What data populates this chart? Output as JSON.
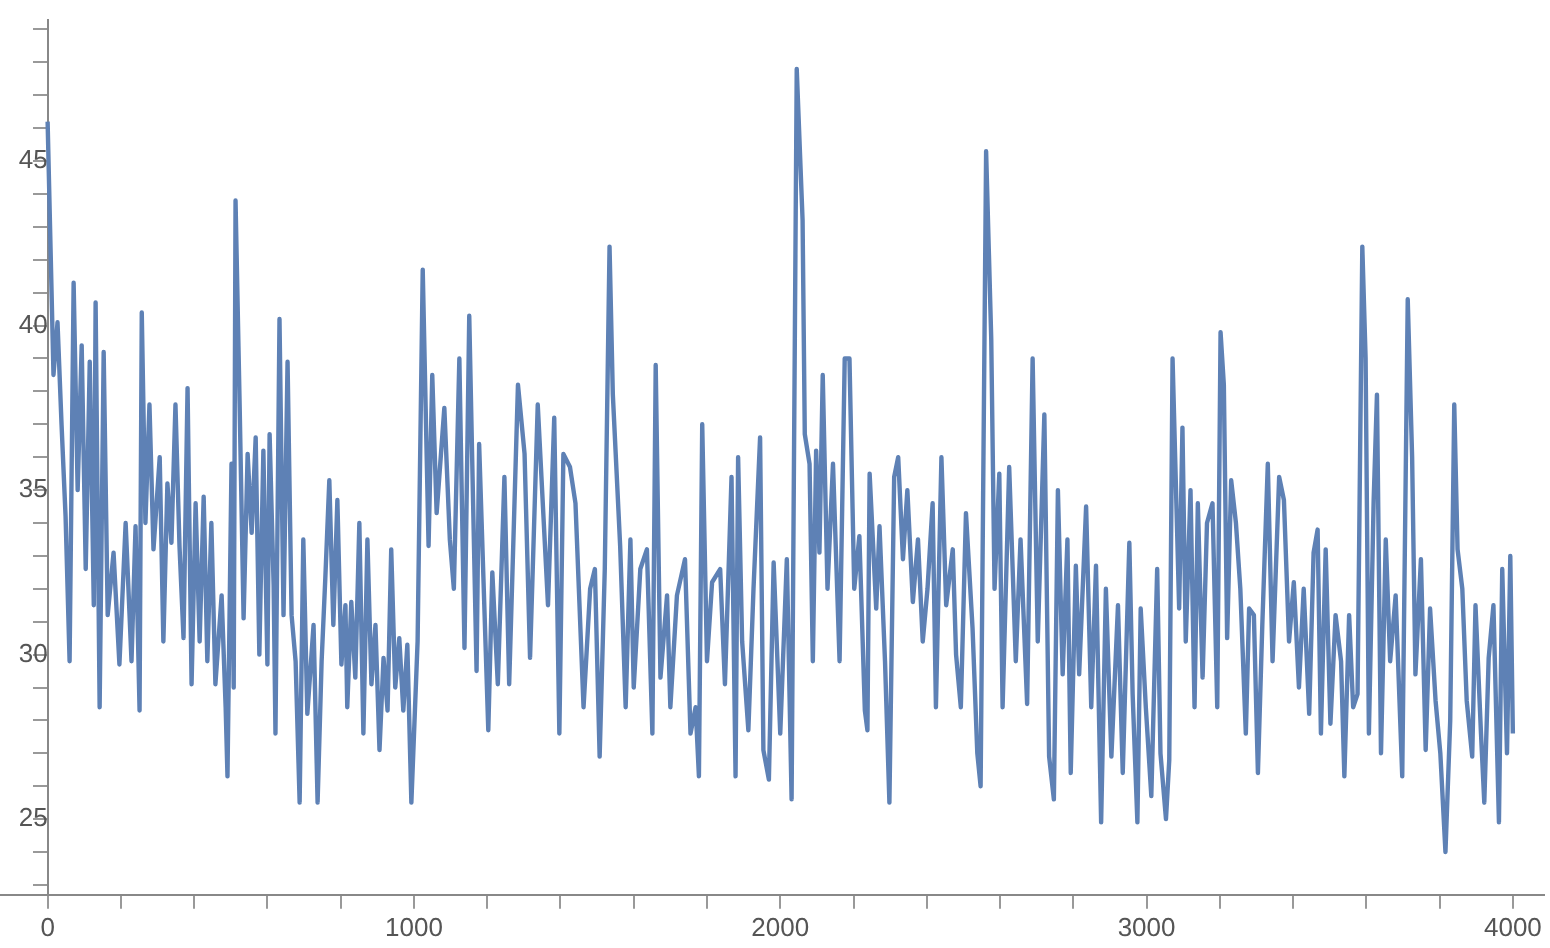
{
  "chart_data": {
    "type": "line",
    "color": "#5e81b5",
    "marker": "none",
    "grid": false,
    "legend": false,
    "xlim": [
      -130,
      4085
    ],
    "ylim": [
      22.7,
      49.3
    ],
    "xticks": [
      0,
      {
        "value": 200,
        "label": null
      },
      {
        "value": 400,
        "label": null
      },
      {
        "value": 600,
        "label": null
      },
      {
        "value": 800,
        "label": null
      },
      1000,
      {
        "value": 1200,
        "label": null
      },
      {
        "value": 1400,
        "label": null
      },
      {
        "value": 1600,
        "label": null
      },
      {
        "value": 1800,
        "label": null
      },
      2000,
      {
        "value": 2200,
        "label": null
      },
      {
        "value": 2400,
        "label": null
      },
      {
        "value": 2600,
        "label": null
      },
      {
        "value": 2800,
        "label": null
      },
      3000,
      {
        "value": 3200,
        "label": null
      },
      {
        "value": 3400,
        "label": null
      },
      {
        "value": 3600,
        "label": null
      },
      {
        "value": 3800,
        "label": null
      },
      4000
    ],
    "yticks": [
      {
        "value": 23,
        "label": null
      },
      {
        "value": 24,
        "label": null
      },
      25,
      {
        "value": 26,
        "label": null
      },
      {
        "value": 27,
        "label": null
      },
      {
        "value": 28,
        "label": null
      },
      {
        "value": 29,
        "label": null
      },
      30,
      {
        "value": 31,
        "label": null
      },
      {
        "value": 32,
        "label": null
      },
      {
        "value": 33,
        "label": null
      },
      {
        "value": 34,
        "label": null
      },
      35,
      {
        "value": 36,
        "label": null
      },
      {
        "value": 37,
        "label": null
      },
      {
        "value": 38,
        "label": null
      },
      {
        "value": 39,
        "label": null
      },
      40,
      {
        "value": 41,
        "label": null
      },
      {
        "value": 42,
        "label": null
      },
      {
        "value": 43,
        "label": null
      },
      {
        "value": 44,
        "label": null
      },
      45,
      {
        "value": 46,
        "label": null
      },
      {
        "value": 47,
        "label": null
      },
      {
        "value": 48,
        "label": null
      },
      {
        "value": 49,
        "label": null
      }
    ],
    "x": [
      0,
      16,
      27,
      38,
      49,
      60,
      71,
      82,
      93,
      104,
      115,
      126,
      131,
      142,
      153,
      164,
      180,
      196,
      213,
      229,
      240,
      251,
      257,
      267,
      278,
      289,
      306,
      316,
      327,
      338,
      349,
      360,
      371,
      382,
      393,
      404,
      415,
      426,
      436,
      447,
      458,
      475,
      486,
      491,
      502,
      508,
      513,
      524,
      535,
      546,
      557,
      568,
      578,
      589,
      600,
      606,
      617,
      622,
      633,
      644,
      655,
      666,
      677,
      688,
      698,
      709,
      726,
      737,
      748,
      758,
      769,
      780,
      791,
      802,
      813,
      818,
      829,
      840,
      851,
      862,
      873,
      884,
      895,
      906,
      917,
      928,
      938,
      949,
      960,
      971,
      982,
      993,
      1010,
      1024,
      1040,
      1050,
      1062,
      1083,
      1098,
      1109,
      1124,
      1138,
      1151,
      1171,
      1178,
      1203,
      1214,
      1229,
      1247,
      1260,
      1284,
      1302,
      1317,
      1338,
      1366,
      1383,
      1397,
      1408,
      1426,
      1441,
      1463,
      1481,
      1494,
      1507,
      1521,
      1534,
      1543,
      1563,
      1578,
      1591,
      1600,
      1618,
      1636,
      1651,
      1660,
      1673,
      1691,
      1700,
      1718,
      1740,
      1755,
      1769,
      1778,
      1787,
      1800,
      1814,
      1836,
      1849,
      1867,
      1878,
      1885,
      1896,
      1913,
      1927,
      1945,
      1954,
      1969,
      1982,
      2000,
      2018,
      2031,
      2045,
      2061,
      2067,
      2080,
      2089,
      2098,
      2107,
      2116,
      2129,
      2144,
      2162,
      2176,
      2189,
      2202,
      2216,
      2231,
      2238,
      2244,
      2262,
      2271,
      2286,
      2298,
      2311,
      2322,
      2335,
      2347,
      2362,
      2376,
      2389,
      2402,
      2416,
      2425,
      2440,
      2453,
      2471,
      2480,
      2493,
      2507,
      2525,
      2538,
      2547,
      2562,
      2576,
      2585,
      2598,
      2607,
      2625,
      2643,
      2656,
      2674,
      2689,
      2703,
      2721,
      2734,
      2747,
      2758,
      2771,
      2784,
      2793,
      2807,
      2816,
      2835,
      2849,
      2862,
      2876,
      2889,
      2904,
      2922,
      2935,
      2953,
      2962,
      2975,
      2984,
      2998,
      3013,
      3029,
      3038,
      3053,
      3062,
      3071,
      3089,
      3098,
      3107,
      3120,
      3131,
      3140,
      3153,
      3165,
      3180,
      3193,
      3202,
      3211,
      3220,
      3231,
      3244,
      3256,
      3271,
      3280,
      3293,
      3304,
      3316,
      3331,
      3344,
      3362,
      3375,
      3389,
      3402,
      3416,
      3429,
      3444,
      3456,
      3467,
      3476,
      3489,
      3502,
      3516,
      3531,
      3540,
      3553,
      3564,
      3576,
      3589,
      3598,
      3607,
      3620,
      3629,
      3640,
      3653,
      3665,
      3680,
      3698,
      3713,
      3725,
      3734,
      3749,
      3762,
      3774,
      3789,
      3802,
      3816,
      3829,
      3840,
      3849,
      3862,
      3874,
      3889,
      3898,
      3913,
      3922,
      3934,
      3947,
      3962,
      3971,
      3984,
      3993,
      4000
    ],
    "values": [
      46.2,
      38.5,
      40.1,
      37,
      34.2,
      29.8,
      41.3,
      35,
      39.4,
      32.6,
      38.9,
      31.5,
      40.7,
      28.4,
      39.2,
      31.2,
      33.1,
      29.7,
      34,
      29.8,
      33.9,
      28.3,
      40.4,
      34,
      37.6,
      33.2,
      36,
      30.4,
      35.2,
      33.4,
      37.6,
      33.3,
      30.5,
      38.1,
      29.1,
      34.6,
      30.4,
      34.8,
      29.8,
      34,
      29.1,
      31.8,
      28.4,
      26.3,
      35.8,
      29,
      43.8,
      37.7,
      31.1,
      36.1,
      33.7,
      36.6,
      30,
      36.2,
      29.7,
      36.7,
      32.1,
      27.6,
      40.2,
      31.2,
      38.9,
      31.2,
      29.8,
      25.5,
      33.5,
      28.2,
      30.9,
      25.5,
      29.8,
      32.3,
      35.3,
      30.9,
      34.7,
      29.7,
      31.5,
      28.4,
      31.6,
      29.3,
      34,
      27.6,
      33.5,
      29.1,
      30.9,
      27.1,
      29.9,
      28.3,
      33.2,
      29,
      30.5,
      28.3,
      30.3,
      25.5,
      30.4,
      41.7,
      33.3,
      38.5,
      34.3,
      37.5,
      33.5,
      32,
      39,
      30.2,
      40.3,
      29.5,
      36.4,
      27.7,
      32.5,
      29.1,
      35.4,
      29.1,
      38.2,
      36.1,
      29.9,
      37.6,
      31.5,
      37.2,
      27.6,
      36.1,
      35.7,
      34.6,
      28.4,
      32,
      32.6,
      26.9,
      32.6,
      42.4,
      37.9,
      33.3,
      28.4,
      33.5,
      29,
      32.6,
      33.2,
      27.6,
      38.8,
      29.3,
      31.8,
      28.4,
      31.8,
      32.9,
      27.6,
      28.4,
      26.3,
      37,
      29.8,
      32.2,
      32.6,
      29.1,
      35.4,
      26.3,
      36,
      30.4,
      27.7,
      32,
      36.6,
      27.1,
      26.2,
      32.8,
      27.6,
      32.9,
      25.6,
      47.8,
      43.2,
      36.7,
      35.8,
      29.8,
      36.2,
      33.1,
      38.5,
      32,
      35.8,
      29.8,
      39,
      39,
      32,
      33.6,
      28.3,
      27.7,
      35.5,
      31.4,
      33.9,
      29.8,
      25.5,
      35.4,
      36,
      32.9,
      35,
      31.6,
      33.5,
      30.4,
      32,
      34.6,
      28.4,
      36,
      31.5,
      33.2,
      30,
      28.4,
      34.3,
      30.8,
      27,
      26,
      45.3,
      39.6,
      32,
      35.5,
      28.4,
      35.7,
      29.8,
      33.5,
      28.5,
      39,
      30.4,
      37.3,
      26.9,
      25.6,
      35,
      29.4,
      33.5,
      26.4,
      32.7,
      29.4,
      34.5,
      28.4,
      32.7,
      24.9,
      32,
      26.9,
      31.5,
      26.4,
      33.4,
      28.8,
      24.9,
      31.4,
      28.4,
      25.7,
      32.6,
      27,
      25,
      26.8,
      39,
      31.4,
      36.9,
      30.4,
      35,
      28.4,
      34.6,
      29.3,
      34,
      34.6,
      28.4,
      39.8,
      38.2,
      30.5,
      35.3,
      34,
      32,
      27.6,
      31.4,
      31.2,
      26.4,
      30.9,
      35.8,
      29.8,
      35.4,
      34.7,
      30.4,
      32.2,
      29,
      32,
      28.2,
      33.1,
      33.8,
      27.6,
      33.2,
      27.9,
      31.2,
      29.8,
      26.3,
      31.2,
      28.4,
      28.8,
      42.4,
      39,
      27.6,
      34.7,
      37.9,
      27,
      33.5,
      29.8,
      31.8,
      26.3,
      40.8,
      36,
      29.4,
      32.9,
      27.1,
      31.4,
      28.6,
      27,
      24,
      28,
      37.6,
      33.2,
      32,
      28.6,
      26.9,
      31.5,
      27.6,
      25.5,
      29.9,
      31.5,
      24.9,
      32.6,
      27,
      33,
      27.6
    ]
  }
}
